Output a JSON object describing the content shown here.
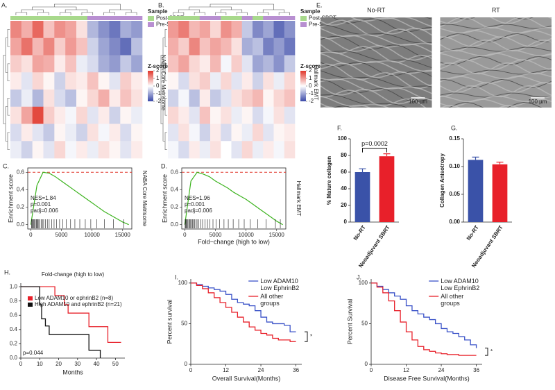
{
  "chart_data": [
    {
      "type": "heatmap",
      "label": "A.",
      "side_label": "NABA Core Matrisome",
      "legend_title": "Sample",
      "groups": [
        {
          "name": "Post-SBRT",
          "color": "#a8d98c"
        },
        {
          "name": "Pre-SBRT",
          "color": "#b88fd1"
        }
      ],
      "column_groups": [
        0,
        0,
        0,
        0,
        0,
        0,
        0,
        1,
        1,
        1,
        1,
        1
      ],
      "values": [
        [
          1.2,
          0.8,
          1.5,
          0.6,
          1.1,
          0.9,
          0.3,
          -0.8,
          -1.2,
          -1.5,
          -0.9,
          -1.1
        ],
        [
          0.9,
          1.4,
          0.7,
          1.2,
          0.5,
          1.0,
          0.6,
          -0.5,
          -1.0,
          -1.3,
          -1.6,
          -0.7
        ],
        [
          0.5,
          0.3,
          0.9,
          0.8,
          0.2,
          0.6,
          -0.2,
          -0.4,
          -0.9,
          -1.1,
          -0.6,
          -1.0
        ],
        [
          0.2,
          -0.3,
          0.4,
          0.1,
          -0.5,
          0.3,
          0.2,
          0.6,
          0.1,
          -0.3,
          0.5,
          0.2
        ],
        [
          -0.6,
          -0.2,
          -0.8,
          0.3,
          -0.4,
          -0.7,
          0.1,
          0.4,
          0.8,
          0.2,
          0.6,
          0.3
        ],
        [
          0.3,
          0.9,
          1.8,
          0.5,
          0.2,
          -0.1,
          0.4,
          -0.3,
          0.2,
          -0.5,
          0.1,
          -0.2
        ],
        [
          -0.4,
          0.2,
          -0.3,
          -0.6,
          0.1,
          -0.2,
          -0.5,
          0.3,
          -0.1,
          0.2,
          -0.4,
          0.1
        ],
        [
          -0.2,
          -0.5,
          0.1,
          -0.3,
          0.4,
          -0.1,
          0.2,
          -0.2,
          0.3,
          0.1,
          -0.3,
          0.2
        ]
      ],
      "colorbar_title": "Z-score",
      "colorbar_ticks": [
        2,
        1,
        0,
        -1,
        -2
      ],
      "zlim": [
        -2,
        2
      ],
      "colors": [
        "#3b4aa8",
        "#ffffff",
        "#e0352a"
      ]
    },
    {
      "type": "heatmap",
      "label": "B.",
      "side_label": "Hallmark EMT",
      "legend_title": "Sample",
      "groups": [
        {
          "name": "Post-SBRT",
          "color": "#a8d98c"
        },
        {
          "name": "Pre-SBRT",
          "color": "#b88fd1"
        }
      ],
      "column_groups": [
        0,
        0,
        0,
        1,
        1,
        0,
        0,
        1,
        0,
        1,
        1,
        1
      ],
      "values": [
        [
          1.0,
          1.3,
          0.7,
          0.9,
          0.4,
          1.1,
          0.8,
          -0.6,
          -1.3,
          -1.0,
          -1.6,
          -1.2
        ],
        [
          0.8,
          0.5,
          1.2,
          0.6,
          0.9,
          0.7,
          0.3,
          -0.9,
          -0.7,
          -1.4,
          -1.1,
          -1.5
        ],
        [
          0.6,
          0.9,
          0.4,
          0.2,
          0.7,
          -0.1,
          0.5,
          -0.3,
          -1.0,
          -0.8,
          -1.2,
          -0.6
        ],
        [
          0.1,
          -0.4,
          0.3,
          0.5,
          -0.2,
          0.4,
          -0.3,
          0.2,
          -0.5,
          0.3,
          -0.2,
          0.4
        ],
        [
          -0.5,
          -0.1,
          -0.7,
          0.2,
          -0.6,
          -0.3,
          0.3,
          0.5,
          0.7,
          0.1,
          0.4,
          0.6
        ],
        [
          0.4,
          0.2,
          -0.3,
          0.6,
          0.1,
          0.3,
          -0.2,
          0.1,
          -0.4,
          -0.1,
          0.3,
          -0.3
        ],
        [
          -0.3,
          0.3,
          -0.1,
          -0.5,
          0.2,
          -0.4,
          0.1,
          -0.2,
          0.4,
          -0.3,
          0.1,
          0.2
        ],
        [
          -0.1,
          -0.4,
          0.2,
          -0.2,
          0.3,
          0.0,
          -0.3,
          0.4,
          -0.2,
          0.2,
          -0.1,
          0.3
        ]
      ],
      "colorbar_title": "Z-score",
      "colorbar_ticks": [
        2,
        1,
        0,
        -1,
        -2
      ],
      "zlim": [
        -2,
        2
      ],
      "colors": [
        "#3b4aa8",
        "#ffffff",
        "#e0352a"
      ]
    },
    {
      "type": "gsea",
      "label": "C.",
      "side_label": "NABA Core Matrisome",
      "ylabel": "Enrichment score",
      "annotations": [
        "NES=1.84",
        "p=0.001",
        "padj=0.006"
      ],
      "color": "#3cb31e",
      "peak": 0.6,
      "peak_color": "#e0352a",
      "x": [
        0,
        1000,
        2000,
        3000,
        4000,
        5000,
        6000,
        7000,
        8000,
        9000,
        10000,
        11000,
        12000,
        13000,
        14000,
        15000,
        16000
      ],
      "values": [
        0,
        0.45,
        0.6,
        0.59,
        0.55,
        0.5,
        0.45,
        0.4,
        0.35,
        0.3,
        0.25,
        0.2,
        0.15,
        0.11,
        0.07,
        0.03,
        0
      ],
      "hits": [
        100,
        200,
        300,
        450,
        600,
        750,
        900,
        1000,
        1150,
        1300,
        1500,
        1700,
        1900,
        2100,
        2400,
        2700,
        3000,
        3400,
        3800,
        4200,
        4700,
        5200,
        5800,
        6500,
        7200,
        8000,
        8900,
        9800,
        10800,
        12000,
        13500,
        15200
      ],
      "xlim": [
        -500,
        16500
      ],
      "ylim": [
        -0.05,
        0.65
      ],
      "xticks": [
        0,
        5000,
        10000,
        15000
      ],
      "yticks": [
        {
          "value": 0,
          "label": "0.0"
        },
        0.2,
        0.4,
        0.6
      ]
    },
    {
      "type": "gsea",
      "label": "D.",
      "side_label": "Hallmark EMT",
      "ylabel": "Enrichment score",
      "xlabel": "Fold−change (high to low)",
      "annotations": [
        "NES=1.96",
        "p=0.001",
        "padj=0.006"
      ],
      "color": "#3cb31e",
      "peak": 0.6,
      "peak_color": "#e0352a",
      "x": [
        0,
        1000,
        2000,
        3000,
        4000,
        5000,
        6000,
        7000,
        8000,
        9000,
        10000,
        11000,
        12000,
        13000,
        14000,
        15000,
        16000
      ],
      "values": [
        0,
        0.5,
        0.6,
        0.58,
        0.55,
        0.5,
        0.46,
        0.42,
        0.37,
        0.33,
        0.29,
        0.24,
        0.19,
        0.14,
        0.09,
        0.04,
        0
      ],
      "hits": [
        50,
        150,
        250,
        350,
        500,
        650,
        800,
        950,
        1100,
        1250,
        1400,
        1600,
        1800,
        2000,
        2300,
        2600,
        2900,
        3300,
        3700,
        4100,
        4600,
        5100,
        5700,
        6400,
        7100,
        7900,
        8800,
        9700,
        10700,
        11900,
        13300,
        14800,
        15600
      ],
      "xlim": [
        -500,
        16500
      ],
      "ylim": [
        -0.05,
        0.65
      ],
      "xticks": [
        0,
        5000,
        10000,
        15000
      ],
      "yticks": [
        {
          "value": 0,
          "label": "0.0"
        },
        0.2,
        0.4,
        0.6
      ]
    },
    {
      "type": "image",
      "label": "E.",
      "images": [
        {
          "title": "No-RT",
          "scale_label": "100 µm"
        },
        {
          "title": "RT",
          "scale_label": "100 µm"
        }
      ]
    },
    {
      "type": "bar",
      "label": "F.",
      "ylabel": "% Mature collagen",
      "categories": [
        "No-RT",
        "Neoadjuvant SBRT"
      ],
      "values": [
        60,
        79
      ],
      "errors": [
        4,
        3
      ],
      "colors": [
        "#3a52a8",
        "#e8202a"
      ],
      "ylim": [
        0,
        100
      ],
      "yticks": [
        0,
        20,
        40,
        60,
        80,
        100
      ],
      "annotation": "p=0.0002"
    },
    {
      "type": "bar",
      "label": "G.",
      "ylabel": "Collagen Anisotropy",
      "categories": [
        "No-RT",
        "Neoadjuvant SBRT"
      ],
      "values": [
        0.112,
        0.104
      ],
      "errors": [
        0.005,
        0.004
      ],
      "colors": [
        "#3a52a8",
        "#e8202a"
      ],
      "ylim": [
        0,
        0.15
      ],
      "yticks": [
        {
          "value": 0,
          "label": "0.00"
        },
        0.05,
        {
          "value": 0.1,
          "label": "0.10"
        },
        0.15
      ]
    },
    {
      "type": "km",
      "label": "H.",
      "title": "Fold-change (high to low)",
      "xlabel": "Months",
      "annotation": "p=0.044",
      "legend": "upper right",
      "series": [
        {
          "name": "Low ADAM10 or ephrinB2 (n=8)",
          "color": "#e8202a",
          "times": [
            0,
            18,
            23,
            25,
            36,
            46,
            53
          ],
          "values": [
            1,
            0.875,
            0.75,
            0.63,
            0.44,
            0.22,
            0.22
          ]
        },
        {
          "name": "High ADAM10 and ephrinB2 (n=21)",
          "color": "#111111",
          "times": [
            0,
            10,
            11,
            13,
            15,
            36,
            42
          ],
          "values": [
            1,
            0.75,
            0.55,
            0.45,
            0.33,
            0.11,
            0
          ]
        }
      ],
      "xlim": [
        0,
        55
      ],
      "ylim": [
        0,
        1.05
      ],
      "xticks": [
        0,
        10,
        20,
        30,
        40,
        50
      ],
      "yticks": [
        {
          "value": 0,
          "label": "0.0"
        },
        0.2,
        0.4,
        0.6,
        0.8,
        {
          "value": 1,
          "label": "1.0"
        }
      ]
    },
    {
      "type": "km",
      "label": "I.",
      "ylabel": "Percent survival",
      "xlabel": "Overall Survival(Months)",
      "annotation": "*",
      "legend": "upper right",
      "series": [
        {
          "name": "Low ADAM10 Low EphrinB2",
          "color": "#3a52c8",
          "times": [
            0,
            2,
            4,
            6,
            8,
            10,
            12,
            14,
            16,
            18,
            20,
            22,
            24,
            26,
            28,
            30,
            32,
            34,
            36
          ],
          "values": [
            100,
            98,
            96,
            94,
            92,
            90,
            86,
            80,
            76,
            74,
            72,
            66,
            58,
            52,
            50,
            50,
            48,
            40,
            40
          ]
        },
        {
          "name": "All other groups",
          "color": "#e8202a",
          "times": [
            0,
            2,
            4,
            6,
            8,
            10,
            12,
            14,
            16,
            18,
            20,
            22,
            24,
            26,
            28,
            30,
            32,
            34,
            36
          ],
          "values": [
            100,
            97,
            93,
            88,
            82,
            76,
            70,
            64,
            58,
            52,
            46,
            42,
            38,
            36,
            32,
            30,
            30,
            28,
            28
          ]
        }
      ],
      "xlim": [
        0,
        38
      ],
      "ylim": [
        0,
        105
      ],
      "xticks": [
        0,
        12,
        24,
        36
      ],
      "yticks": [
        0,
        50,
        100
      ]
    },
    {
      "type": "km",
      "label": "J.",
      "ylabel": "Percent Survival",
      "xlabel": "Disease Free Survival(Months)",
      "annotation": "*",
      "legend": "upper right",
      "series": [
        {
          "name": "Low ADAM10 Low EphrinB2",
          "color": "#3a52c8",
          "times": [
            0,
            2,
            4,
            6,
            8,
            10,
            12,
            14,
            16,
            18,
            20,
            22,
            24,
            26,
            28,
            30,
            32,
            34,
            36
          ],
          "values": [
            100,
            96,
            92,
            88,
            84,
            80,
            72,
            66,
            62,
            58,
            55,
            50,
            44,
            40,
            38,
            34,
            30,
            24,
            20
          ]
        },
        {
          "name": "All other groups",
          "color": "#e8202a",
          "times": [
            0,
            2,
            4,
            6,
            8,
            10,
            12,
            14,
            16,
            18,
            20,
            22,
            24,
            26,
            28,
            30,
            32,
            34,
            36
          ],
          "values": [
            100,
            95,
            88,
            78,
            66,
            52,
            40,
            30,
            22,
            18,
            16,
            14,
            13,
            12,
            12,
            11,
            11,
            11,
            11
          ]
        }
      ],
      "xlim": [
        0,
        38
      ],
      "ylim": [
        0,
        105
      ],
      "xticks": [
        0,
        12,
        24,
        36
      ],
      "yticks": [
        0,
        50,
        100
      ]
    }
  ]
}
